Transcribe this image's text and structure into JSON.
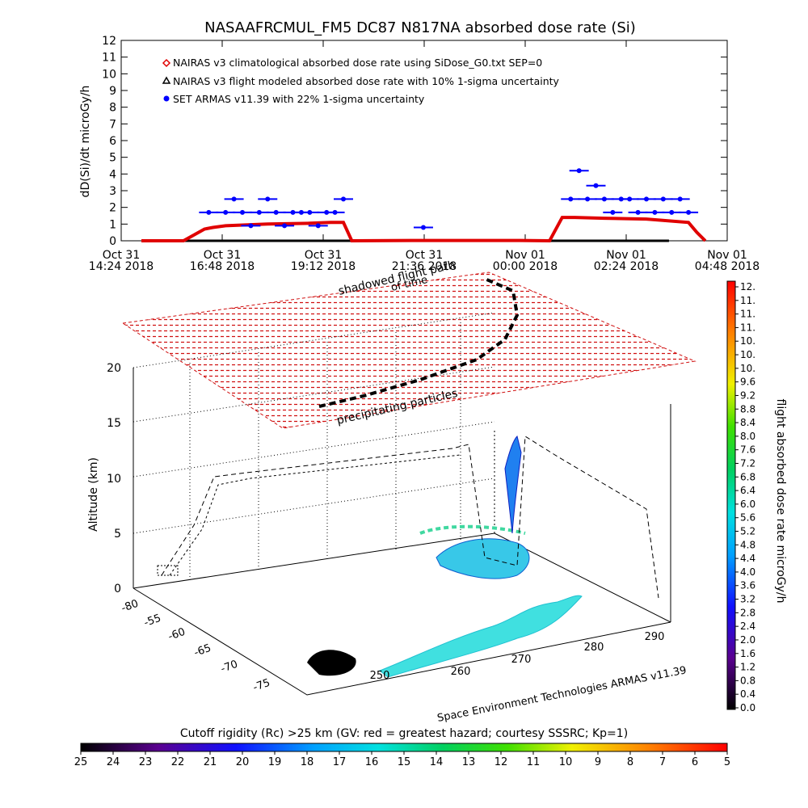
{
  "chart_data": [
    {
      "type": "line",
      "title": "NASAAFRCMUL_FM5 DC87 N817NA absorbed dose rate (Si)",
      "ylabel": "dD(Si)/dt microGy/h",
      "ylim": [
        0,
        12
      ],
      "y_ticks": [
        "0",
        "1",
        "2",
        "3",
        "4",
        "5",
        "6",
        "7",
        "8",
        "9",
        "10",
        "11",
        "12"
      ],
      "x_ticks": [
        {
          "line1": "Oct 31",
          "line2": "14:24 2018"
        },
        {
          "line1": "Oct 31",
          "line2": "16:48 2018"
        },
        {
          "line1": "Oct 31",
          "line2": "19:12 2018"
        },
        {
          "line1": "Oct 31",
          "line2": "21:36 2018"
        },
        {
          "line1": "Nov 01",
          "line2": "00:00 2018"
        },
        {
          "line1": "Nov 01",
          "line2": "02:24 2018"
        },
        {
          "line1": "Nov 01",
          "line2": "04:48 2018"
        }
      ],
      "legend_position": "top-left",
      "series": [
        {
          "name": "NAIRAS v3 climatological absorbed dose rate using SiDose_G0.txt SEP=0",
          "color": "#e00000",
          "marker": "diamond",
          "x_hours": [
            0.0,
            1.0,
            1.5,
            1.7,
            2.0,
            3.0,
            4.0,
            4.5,
            4.8,
            5.0,
            6.5,
            9.0,
            9.7,
            10.0,
            10.3,
            11.0,
            12.0,
            13.0,
            13.2,
            13.4
          ],
          "values": [
            0.0,
            0.0,
            0.7,
            0.8,
            0.9,
            1.0,
            1.05,
            1.1,
            1.1,
            0.0,
            0.02,
            0.02,
            0.0,
            1.4,
            1.4,
            1.35,
            1.3,
            1.1,
            0.5,
            0.0
          ]
        },
        {
          "name": "NAIRAS v3 flight modeled absorbed dose rate with 10% 1-sigma uncertainty",
          "color": "#000000",
          "marker": "triangle",
          "x_hours": [
            0.0,
            13.4
          ],
          "values": [
            0.0,
            0.0
          ]
        },
        {
          "name": "SET ARMAS v11.39 with 22% 1-sigma uncertainty",
          "color": "#0000ff",
          "marker": "circle",
          "x_hours": [
            1.6,
            2.0,
            2.2,
            2.4,
            2.6,
            2.8,
            3.0,
            3.2,
            3.4,
            3.6,
            3.8,
            4.0,
            4.2,
            4.4,
            4.6,
            4.8,
            6.7,
            10.2,
            10.4,
            10.6,
            10.8,
            11.0,
            11.2,
            11.4,
            11.6,
            11.8,
            12.0,
            12.2,
            12.4,
            12.6,
            12.8,
            13.0
          ],
          "values": [
            1.7,
            1.7,
            2.5,
            1.7,
            0.9,
            1.7,
            2.5,
            1.7,
            0.9,
            1.7,
            1.7,
            1.7,
            0.9,
            1.7,
            1.7,
            2.5,
            0.8,
            2.5,
            4.2,
            2.5,
            3.3,
            2.5,
            1.7,
            2.5,
            2.5,
            1.7,
            2.5,
            1.7,
            2.5,
            1.7,
            2.5,
            1.7
          ]
        }
      ]
    },
    {
      "type": "scatter",
      "zlabel": "Altitude (km)",
      "z_ticks": [
        "0",
        "5",
        "10",
        "15",
        "20"
      ],
      "x_ticks": [
        "250",
        "260",
        "270",
        "280",
        "290"
      ],
      "y_ticks": [
        "-80",
        "-55",
        "-60",
        "-65",
        "-70",
        "-75"
      ],
      "annotations": [
        "shadowed flight path",
        "of time",
        "precipitating particles"
      ],
      "credit": "Space Environment Technologies ARMAS v11.39"
    },
    {
      "type": "heatmap",
      "title": "flight absorbed dose rate microGy/h",
      "orientation": "vertical",
      "labels": [
        "12.",
        "11.",
        "11.",
        "11.",
        "10.",
        "10.",
        "10.",
        "9.6",
        "9.2",
        "8.8",
        "8.4",
        "8.0",
        "7.6",
        "7.2",
        "6.8",
        "6.4",
        "6.0",
        "5.6",
        "5.2",
        "4.8",
        "4.4",
        "4.0",
        "3.6",
        "3.2",
        "2.8",
        "2.4",
        "2.0",
        "1.6",
        "1.2",
        "0.8",
        "0.4",
        "0.0"
      ]
    },
    {
      "type": "heatmap",
      "title": "Cutoff rigidity (Rc) >25 km (GV: red = greatest hazard; courtesy SSSRC; Kp=1)",
      "orientation": "horizontal",
      "labels": [
        "25",
        "24",
        "23",
        "22",
        "21",
        "20",
        "19",
        "18",
        "17",
        "16",
        "15",
        "14",
        "13",
        "12",
        "11",
        "10",
        "9",
        "8",
        "7",
        "6",
        "5"
      ]
    }
  ]
}
